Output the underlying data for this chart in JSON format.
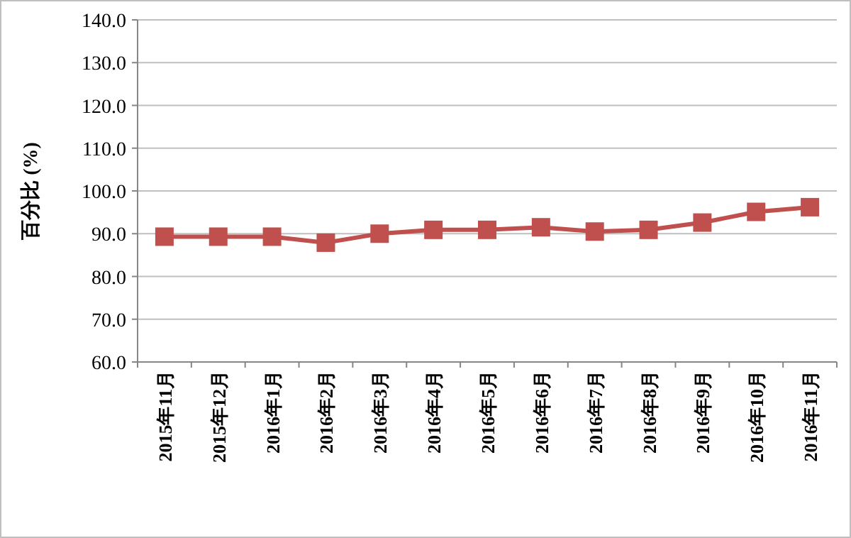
{
  "chart_data": {
    "type": "line",
    "ylabel": "百分比 (%)",
    "categories": [
      "2015年11月",
      "2015年12月",
      "2016年1月",
      "2016年2月",
      "2016年3月",
      "2016年4月",
      "2016年5月",
      "2016年6月",
      "2016年7月",
      "2016年8月",
      "2016年9月",
      "2016年10月",
      "2016年11月"
    ],
    "series": [
      {
        "color": "#c0504d",
        "values": [
          89.3,
          89.3,
          89.3,
          87.9,
          90.0,
          90.9,
          90.9,
          91.5,
          90.5,
          90.9,
          92.6,
          95.1,
          96.2
        ]
      }
    ],
    "ylim": [
      60,
      140
    ],
    "yticks": [
      {
        "value": 60,
        "label": "60.0"
      },
      {
        "value": 70,
        "label": "70.0"
      },
      {
        "value": 80,
        "label": "80.0"
      },
      {
        "value": 90,
        "label": "90.0"
      },
      {
        "value": 100,
        "label": "100.0"
      },
      {
        "value": 110,
        "label": "110.0"
      },
      {
        "value": 120,
        "label": "120.0"
      },
      {
        "value": 130,
        "label": "130.0"
      },
      {
        "value": 140,
        "label": "140.0"
      }
    ],
    "grid": "y",
    "marker": "square",
    "line_style": "solid"
  }
}
